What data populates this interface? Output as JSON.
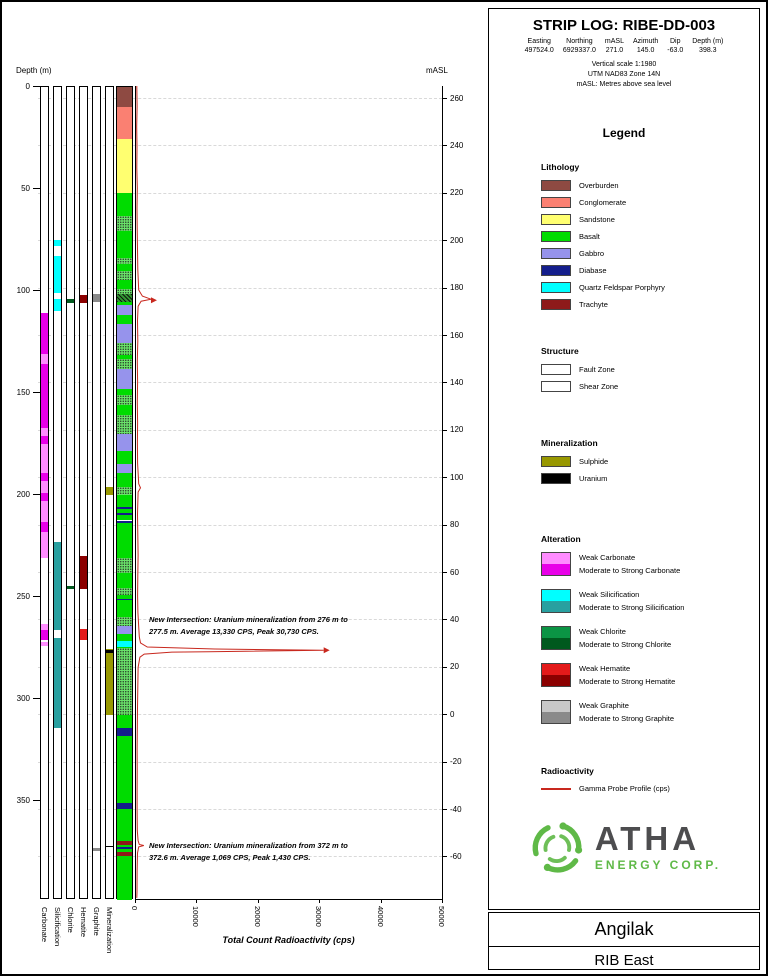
{
  "header": {
    "title": "STRIP LOG: RIBE-DD-003",
    "cols": [
      {
        "label": "Easting",
        "value": "497524.0"
      },
      {
        "label": "Northing",
        "value": "6929337.0"
      },
      {
        "label": "mASL",
        "value": "271.0"
      },
      {
        "label": "Azimuth",
        "value": "145.0"
      },
      {
        "label": "Dip",
        "value": "-63.0"
      },
      {
        "label": "Depth (m)",
        "value": "398.3"
      }
    ],
    "notes": [
      "Vertical scale 1:1980",
      "UTM NAD83 Zone 14N",
      "mASL: Metres above sea level"
    ]
  },
  "legend": {
    "title": "Legend",
    "lithology_order": [
      "overburden",
      "conglomerate",
      "sandstone",
      "basalt",
      "gabbro",
      "diabase",
      "qfp",
      "trachyte"
    ],
    "units": {
      "overburden": {
        "label": "Overburden",
        "color": "#8E4A42"
      },
      "conglomerate": {
        "label": "Conglomerate",
        "color": "#FA8072"
      },
      "sandstone": {
        "label": "Sandstone",
        "color": "#FFFF70"
      },
      "basalt": {
        "label": "Basalt",
        "color": "#00DC00"
      },
      "gabbro": {
        "label": "Gabbro",
        "color": "#9693EC"
      },
      "diabase": {
        "label": "Diabase",
        "color": "#141E8C"
      },
      "qfp": {
        "label": "Quartz Feldspar Porphyry",
        "color": "#00FFFF"
      },
      "trachyte": {
        "label": "Trachyte",
        "color": "#8E1A1A"
      }
    },
    "sections": {
      "lithology": {
        "title": "Lithology"
      },
      "structure": {
        "title": "Structure",
        "items": [
          {
            "key": "fault",
            "label": "Fault Zone"
          },
          {
            "key": "shear",
            "label": "Shear Zone"
          }
        ]
      },
      "mineralization": {
        "title": "Mineralization",
        "items": [
          {
            "key": "sulphide",
            "label": "Sulphide",
            "color": "#989800"
          },
          {
            "key": "uranium",
            "label": "Uranium",
            "color": "#000000"
          }
        ]
      },
      "alteration": {
        "title": "Alteration",
        "items": [
          {
            "key": "carbonate",
            "weak_label": "Weak Carbonate",
            "strong_label": "Moderate to Strong Carbonate",
            "weak_color": "#FF8CFF",
            "strong_color": "#E800E8"
          },
          {
            "key": "silicification",
            "weak_label": "Weak Silicification",
            "strong_label": "Moderate to Strong Silicification",
            "weak_color": "#00FFFF",
            "strong_color": "#28A0A0"
          },
          {
            "key": "chlorite",
            "weak_label": "Weak Chlorite",
            "strong_label": "Moderate to Strong Chlorite",
            "weak_color": "#0B9444",
            "strong_color": "#00591E"
          },
          {
            "key": "hematite",
            "weak_label": "Weak Hematite",
            "strong_label": "Moderate to Strong Hematite",
            "weak_color": "#E31A1A",
            "strong_color": "#8B0000"
          },
          {
            "key": "graphite",
            "weak_label": "Weak Graphite",
            "strong_label": "Moderate to Strong Graphite",
            "weak_color": "#C8C8C8",
            "strong_color": "#8A8A8A"
          }
        ]
      },
      "radioactivity": {
        "title": "Radioactivity",
        "items": [
          {
            "key": "gamma",
            "label": "Gamma Probe Profile (cps)",
            "color": "#C8281E",
            "type": "line"
          }
        ]
      }
    }
  },
  "logo": {
    "brand": "ATHA",
    "sub": "ENERGY CORP.",
    "green": "#5FB947",
    "dark": "#4D4D4F"
  },
  "footer": {
    "project": "Angilak",
    "area": "RIB East"
  },
  "chart_data": {
    "type": "strip-log",
    "title": "STRIP LOG: RIBE-DD-003",
    "depth_axis": {
      "label": "Depth (m)",
      "ticks": [
        0,
        50,
        100,
        150,
        200,
        250,
        300,
        350
      ],
      "range": [
        0,
        398.3
      ]
    },
    "masl_axis": {
      "label": "mASL",
      "collar": 271.0,
      "ticks": [
        260,
        240,
        220,
        200,
        180,
        160,
        140,
        120,
        100,
        80,
        60,
        40,
        20,
        0,
        -20,
        -40,
        -60
      ]
    },
    "x_axis": {
      "label": "Total Count Radioactivity (cps)",
      "ticks": [
        0,
        10000,
        20000,
        30000,
        40000,
        50000
      ],
      "max": 50000
    },
    "grid": "dashed-horizontal",
    "tracks": [
      {
        "key": "carbonate",
        "name": "Carbonate",
        "intervals": [
          [
            111,
            131,
            "strong"
          ],
          [
            131,
            136,
            "weak"
          ],
          [
            136,
            167,
            "strong"
          ],
          [
            167,
            171,
            "weak"
          ],
          [
            171,
            175,
            "strong"
          ],
          [
            175,
            189,
            "weak"
          ],
          [
            189,
            193,
            "strong"
          ],
          [
            193,
            199,
            "weak"
          ],
          [
            199,
            203,
            "strong"
          ],
          [
            203,
            213,
            "weak"
          ],
          [
            213,
            218,
            "strong"
          ],
          [
            218,
            231,
            "weak"
          ],
          [
            263,
            266,
            "weak"
          ],
          [
            266,
            271,
            "strong"
          ],
          [
            272,
            274,
            "weak"
          ]
        ]
      },
      {
        "key": "silicification",
        "name": "Silicification",
        "intervals": [
          [
            75,
            78,
            "weak"
          ],
          [
            83,
            101,
            "weak"
          ],
          [
            104,
            110,
            "weak"
          ],
          [
            223,
            266,
            "strong"
          ],
          [
            270,
            314,
            "strong"
          ]
        ]
      },
      {
        "key": "chlorite",
        "name": "Chlorite",
        "intervals": [
          [
            104,
            106,
            "strong"
          ],
          [
            244.5,
            246,
            "strong"
          ]
        ]
      },
      {
        "key": "hematite",
        "name": "Hematite",
        "intervals": [
          [
            102,
            106,
            "strong"
          ],
          [
            230,
            246,
            "strong"
          ],
          [
            265.5,
            271,
            "weak"
          ]
        ]
      },
      {
        "key": "graphite",
        "name": "Graphite",
        "intervals": [
          [
            101.5,
            105.5,
            "strong"
          ],
          [
            373,
            374.5,
            "strong"
          ]
        ]
      },
      {
        "key": "mineralization",
        "name": "Mineralization",
        "intervals": [
          [
            196,
            200,
            "sulphide"
          ],
          [
            275.5,
            308,
            "sulphide"
          ],
          [
            276,
            277.5,
            "uranium"
          ],
          [
            372,
            372.6,
            "uranium"
          ]
        ]
      }
    ],
    "lithology": [
      [
        0,
        10,
        "overburden"
      ],
      [
        10,
        25.5,
        "conglomerate"
      ],
      [
        25.5,
        52,
        "sandstone"
      ],
      [
        52,
        107,
        "basalt"
      ],
      [
        107,
        112,
        "gabbro"
      ],
      [
        112,
        116,
        "basalt"
      ],
      [
        116,
        125.5,
        "gabbro"
      ],
      [
        125.5,
        138,
        "basalt"
      ],
      [
        138,
        148,
        "gabbro"
      ],
      [
        148,
        170,
        "basalt"
      ],
      [
        170,
        178.5,
        "gabbro"
      ],
      [
        178.5,
        185,
        "basalt"
      ],
      [
        185,
        189,
        "gabbro"
      ],
      [
        189,
        206,
        "basalt"
      ],
      [
        206,
        207,
        "diabase"
      ],
      [
        207,
        209,
        "basalt"
      ],
      [
        209,
        210,
        "diabase"
      ],
      [
        210,
        212.5,
        "basalt"
      ],
      [
        212.5,
        213.5,
        "diabase"
      ],
      [
        213.5,
        250.8,
        "basalt"
      ],
      [
        250.8,
        251.6,
        "diabase"
      ],
      [
        251.6,
        264,
        "basalt"
      ],
      [
        264,
        268,
        "gabbro"
      ],
      [
        268,
        271.5,
        "basalt"
      ],
      [
        271.5,
        274.5,
        "qfp"
      ],
      [
        274.5,
        314,
        "basalt"
      ],
      [
        314,
        318,
        "diabase"
      ],
      [
        318,
        351,
        "basalt"
      ],
      [
        351,
        354,
        "diabase"
      ],
      [
        354,
        369.5,
        "basalt"
      ],
      [
        369.5,
        371.5,
        "trachyte"
      ],
      [
        371.5,
        372.5,
        "basalt"
      ],
      [
        372.5,
        373.5,
        "diabase"
      ],
      [
        373.5,
        375,
        "basalt"
      ],
      [
        375,
        377,
        "trachyte"
      ],
      [
        377,
        398.3,
        "basalt"
      ]
    ],
    "structures": [
      [
        63,
        70.5,
        "fault"
      ],
      [
        84,
        87,
        "fault"
      ],
      [
        90,
        94.5,
        "fault"
      ],
      [
        99,
        101.5,
        "fault"
      ],
      [
        101.5,
        105.5,
        "shear"
      ],
      [
        125.5,
        131.5,
        "fault"
      ],
      [
        133.5,
        138,
        "fault"
      ],
      [
        151,
        156,
        "fault"
      ],
      [
        161,
        170,
        "fault"
      ],
      [
        196,
        200,
        "fault"
      ],
      [
        231,
        238,
        "fault"
      ],
      [
        245.5,
        249,
        "fault"
      ],
      [
        260,
        264,
        "fault"
      ],
      [
        275,
        308,
        "fault"
      ]
    ],
    "gamma": {
      "name": "Gamma Probe Profile (cps)",
      "color": "#C8281E",
      "points": [
        [
          0,
          300
        ],
        [
          10,
          350
        ],
        [
          20,
          280
        ],
        [
          30,
          320
        ],
        [
          40,
          300
        ],
        [
          50,
          380
        ],
        [
          60,
          330
        ],
        [
          70,
          360
        ],
        [
          80,
          400
        ],
        [
          90,
          450
        ],
        [
          100,
          600
        ],
        [
          103,
          1200
        ],
        [
          104.5,
          2600
        ],
        [
          105.5,
          1000
        ],
        [
          108,
          500
        ],
        [
          115,
          400
        ],
        [
          125,
          450
        ],
        [
          135,
          380
        ],
        [
          145,
          420
        ],
        [
          155,
          380
        ],
        [
          165,
          430
        ],
        [
          175,
          390
        ],
        [
          185,
          420
        ],
        [
          195,
          600
        ],
        [
          197,
          900
        ],
        [
          199,
          500
        ],
        [
          210,
          400
        ],
        [
          220,
          450
        ],
        [
          230,
          500
        ],
        [
          240,
          450
        ],
        [
          250,
          420
        ],
        [
          258,
          480
        ],
        [
          265,
          600
        ],
        [
          270,
          700
        ],
        [
          273,
          900
        ],
        [
          275,
          2000
        ],
        [
          276,
          13000
        ],
        [
          276.6,
          30730
        ],
        [
          277.3,
          12000
        ],
        [
          277.5,
          6000
        ],
        [
          278.5,
          1500
        ],
        [
          280,
          800
        ],
        [
          285,
          500
        ],
        [
          295,
          450
        ],
        [
          305,
          400
        ],
        [
          315,
          380
        ],
        [
          325,
          350
        ],
        [
          335,
          360
        ],
        [
          345,
          340
        ],
        [
          355,
          350
        ],
        [
          365,
          380
        ],
        [
          370,
          500
        ],
        [
          371.8,
          700
        ],
        [
          372.3,
          1430
        ],
        [
          373,
          600
        ],
        [
          376,
          400
        ],
        [
          385,
          350
        ],
        [
          395,
          320
        ],
        [
          398,
          300
        ]
      ],
      "arrows": [
        [
          105,
          2600
        ],
        [
          276.6,
          30730
        ]
      ]
    },
    "annotations": [
      {
        "at_depth_m": 259,
        "text": "New Intersection: Uranium mineralization from 276 m to 277.5 m. Average 13,330 CPS, Peak 30,730 CPS."
      },
      {
        "at_depth_m": 369.5,
        "text": "New Intersection: Uranium mineralization from 372 m to 372.6 m. Average 1,069 CPS, Peak 1,430 CPS."
      }
    ]
  }
}
